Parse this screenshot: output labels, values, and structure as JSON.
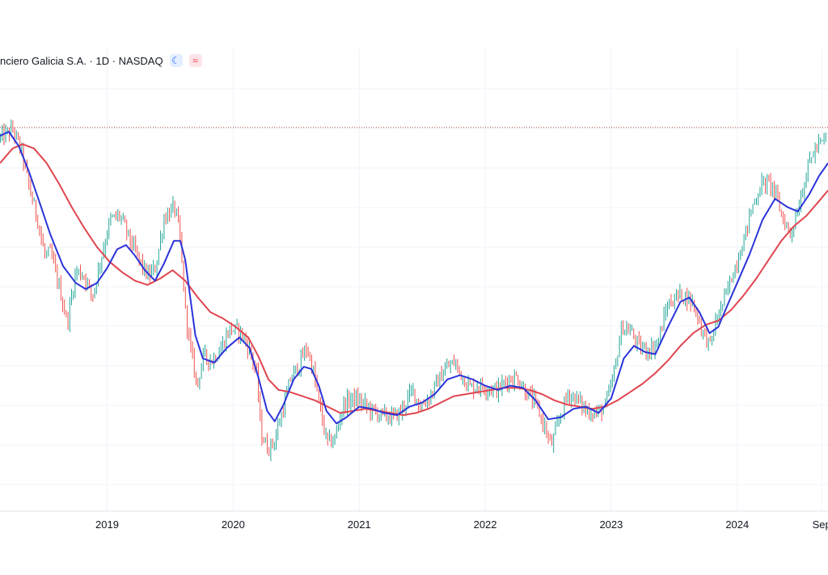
{
  "header": {
    "title": "nciero Galicia S.A. · 1D · NASDAQ",
    "badges": [
      {
        "name": "moon-icon",
        "glyph": "☾",
        "color": "#2962ff"
      },
      {
        "name": "wave-icon",
        "glyph": "≈",
        "color": "#f23645"
      }
    ]
  },
  "colors": {
    "up": "#26a69a",
    "down": "#ef5350",
    "ma_fast": "#2b34d9",
    "ma_slow": "#e0454f",
    "grid": "#f0f3fa",
    "price_line": "#b0504a"
  },
  "chart_data": {
    "type": "line",
    "title": "",
    "xlabel": "",
    "ylabel": "",
    "x_tick_labels": [
      "2019",
      "2020",
      "2021",
      "2022",
      "2023",
      "2024",
      "Sep"
    ],
    "x_tick_positions": [
      2019.0,
      2020.0,
      2021.0,
      2022.0,
      2023.0,
      2024.0,
      2024.67
    ],
    "xlim": [
      2018.15,
      2024.72
    ],
    "ylim": [
      0,
      100
    ],
    "grid": true,
    "price_line_level": 88.5,
    "series": [
      {
        "role": "price",
        "points": [
          [
            2018.15,
            86.0
          ],
          [
            2018.25,
            88.0
          ],
          [
            2018.32,
            82.5
          ],
          [
            2018.38,
            74.0
          ],
          [
            2018.45,
            66.0
          ],
          [
            2018.5,
            58.0
          ],
          [
            2018.55,
            58.5
          ],
          [
            2018.62,
            50.0
          ],
          [
            2018.68,
            42.0
          ],
          [
            2018.75,
            54.5
          ],
          [
            2018.82,
            53.0
          ],
          [
            2018.88,
            48.0
          ],
          [
            2018.93,
            55.0
          ],
          [
            2019.02,
            66.5
          ],
          [
            2019.1,
            67.5
          ],
          [
            2019.18,
            61.5
          ],
          [
            2019.25,
            57.0
          ],
          [
            2019.32,
            53.0
          ],
          [
            2019.38,
            55.0
          ],
          [
            2019.45,
            67.0
          ],
          [
            2019.53,
            69.5
          ],
          [
            2019.57,
            64.0
          ],
          [
            2019.62,
            44.0
          ],
          [
            2019.66,
            35.5
          ],
          [
            2019.71,
            27.0
          ],
          [
            2019.76,
            34.0
          ],
          [
            2019.83,
            33.0
          ],
          [
            2019.9,
            36.0
          ],
          [
            2019.97,
            40.5
          ],
          [
            2020.05,
            40.0
          ],
          [
            2020.12,
            36.0
          ],
          [
            2020.18,
            30.5
          ],
          [
            2020.22,
            15.5
          ],
          [
            2020.27,
            12.0
          ],
          [
            2020.32,
            13.5
          ],
          [
            2020.38,
            20.0
          ],
          [
            2020.45,
            28.5
          ],
          [
            2020.52,
            32.0
          ],
          [
            2020.58,
            36.0
          ],
          [
            2020.63,
            31.0
          ],
          [
            2020.68,
            22.5
          ],
          [
            2020.74,
            13.5
          ],
          [
            2020.8,
            14.0
          ],
          [
            2020.87,
            22.5
          ],
          [
            2020.95,
            24.0
          ],
          [
            2021.02,
            23.0
          ],
          [
            2021.1,
            21.0
          ],
          [
            2021.18,
            20.0
          ],
          [
            2021.25,
            19.5
          ],
          [
            2021.32,
            20.5
          ],
          [
            2021.42,
            26.0
          ],
          [
            2021.48,
            22.0
          ],
          [
            2021.55,
            24.0
          ],
          [
            2021.62,
            28.0
          ],
          [
            2021.68,
            31.0
          ],
          [
            2021.75,
            32.5
          ],
          [
            2021.82,
            29.0
          ],
          [
            2021.88,
            26.5
          ],
          [
            2021.95,
            27.0
          ],
          [
            2022.02,
            26.5
          ],
          [
            2022.1,
            26.0
          ],
          [
            2022.17,
            28.5
          ],
          [
            2022.25,
            29.0
          ],
          [
            2022.32,
            25.5
          ],
          [
            2022.4,
            22.5
          ],
          [
            2022.47,
            17.0
          ],
          [
            2022.52,
            12.5
          ],
          [
            2022.58,
            18.5
          ],
          [
            2022.65,
            25.0
          ],
          [
            2022.72,
            24.0
          ],
          [
            2022.8,
            21.0
          ],
          [
            2022.88,
            20.5
          ],
          [
            2022.95,
            22.0
          ],
          [
            2023.02,
            30.0
          ],
          [
            2023.08,
            41.0
          ],
          [
            2023.15,
            40.0
          ],
          [
            2023.22,
            36.0
          ],
          [
            2023.3,
            35.5
          ],
          [
            2023.37,
            37.5
          ],
          [
            2023.44,
            46.0
          ],
          [
            2023.52,
            48.5
          ],
          [
            2023.58,
            48.5
          ],
          [
            2023.65,
            46.5
          ],
          [
            2023.72,
            40.0
          ],
          [
            2023.78,
            36.5
          ],
          [
            2023.84,
            43.5
          ],
          [
            2023.9,
            48.0
          ],
          [
            2023.97,
            54.5
          ],
          [
            2024.05,
            62.0
          ],
          [
            2024.12,
            70.0
          ],
          [
            2024.2,
            75.5
          ],
          [
            2024.28,
            74.5
          ],
          [
            2024.35,
            67.5
          ],
          [
            2024.42,
            63.0
          ],
          [
            2024.5,
            72.0
          ],
          [
            2024.57,
            80.5
          ],
          [
            2024.63,
            84.0
          ],
          [
            2024.72,
            86.0
          ]
        ]
      },
      {
        "role": "ma_fast",
        "points": [
          [
            2018.15,
            86.5
          ],
          [
            2018.22,
            87.5
          ],
          [
            2018.3,
            84.0
          ],
          [
            2018.38,
            78.0
          ],
          [
            2018.46,
            71.0
          ],
          [
            2018.55,
            63.0
          ],
          [
            2018.65,
            55.5
          ],
          [
            2018.75,
            51.5
          ],
          [
            2018.83,
            50.0
          ],
          [
            2018.92,
            51.5
          ],
          [
            2019.0,
            55.0
          ],
          [
            2019.08,
            59.5
          ],
          [
            2019.15,
            60.5
          ],
          [
            2019.22,
            58.0
          ],
          [
            2019.3,
            54.5
          ],
          [
            2019.38,
            52.0
          ],
          [
            2019.45,
            56.0
          ],
          [
            2019.53,
            61.5
          ],
          [
            2019.58,
            61.5
          ],
          [
            2019.62,
            57.0
          ],
          [
            2019.66,
            48.0
          ],
          [
            2019.7,
            39.0
          ],
          [
            2019.76,
            33.5
          ],
          [
            2019.85,
            32.5
          ],
          [
            2019.95,
            36.0
          ],
          [
            2020.05,
            38.5
          ],
          [
            2020.13,
            36.0
          ],
          [
            2020.2,
            29.0
          ],
          [
            2020.27,
            21.0
          ],
          [
            2020.33,
            18.5
          ],
          [
            2020.4,
            22.5
          ],
          [
            2020.48,
            28.5
          ],
          [
            2020.56,
            31.5
          ],
          [
            2020.62,
            31.0
          ],
          [
            2020.68,
            27.0
          ],
          [
            2020.74,
            21.0
          ],
          [
            2020.82,
            18.0
          ],
          [
            2020.9,
            19.5
          ],
          [
            2021.0,
            22.0
          ],
          [
            2021.1,
            21.5
          ],
          [
            2021.2,
            20.5
          ],
          [
            2021.3,
            20.0
          ],
          [
            2021.4,
            22.0
          ],
          [
            2021.5,
            23.0
          ],
          [
            2021.6,
            25.0
          ],
          [
            2021.7,
            28.5
          ],
          [
            2021.8,
            29.5
          ],
          [
            2021.9,
            28.5
          ],
          [
            2022.0,
            27.0
          ],
          [
            2022.1,
            26.0
          ],
          [
            2022.2,
            27.0
          ],
          [
            2022.3,
            26.5
          ],
          [
            2022.4,
            23.5
          ],
          [
            2022.5,
            19.0
          ],
          [
            2022.6,
            19.5
          ],
          [
            2022.7,
            21.5
          ],
          [
            2022.8,
            22.0
          ],
          [
            2022.9,
            20.5
          ],
          [
            2023.0,
            24.0
          ],
          [
            2023.1,
            33.5
          ],
          [
            2023.18,
            36.5
          ],
          [
            2023.27,
            35.0
          ],
          [
            2023.35,
            34.5
          ],
          [
            2023.45,
            41.0
          ],
          [
            2023.55,
            47.0
          ],
          [
            2023.62,
            48.0
          ],
          [
            2023.7,
            44.5
          ],
          [
            2023.78,
            39.5
          ],
          [
            2023.85,
            41.0
          ],
          [
            2023.92,
            46.0
          ],
          [
            2024.0,
            51.5
          ],
          [
            2024.1,
            58.5
          ],
          [
            2024.2,
            66.5
          ],
          [
            2024.3,
            71.5
          ],
          [
            2024.4,
            69.5
          ],
          [
            2024.48,
            68.5
          ],
          [
            2024.57,
            72.5
          ],
          [
            2024.65,
            77.0
          ],
          [
            2024.72,
            80.0
          ]
        ]
      },
      {
        "role": "ma_slow",
        "points": [
          [
            2018.15,
            80.0
          ],
          [
            2018.25,
            83.5
          ],
          [
            2018.33,
            84.5
          ],
          [
            2018.42,
            83.5
          ],
          [
            2018.52,
            80.0
          ],
          [
            2018.62,
            75.0
          ],
          [
            2018.72,
            69.5
          ],
          [
            2018.82,
            64.5
          ],
          [
            2018.92,
            60.0
          ],
          [
            2019.02,
            56.5
          ],
          [
            2019.12,
            54.0
          ],
          [
            2019.22,
            52.0
          ],
          [
            2019.32,
            51.0
          ],
          [
            2019.42,
            52.5
          ],
          [
            2019.52,
            54.5
          ],
          [
            2019.62,
            52.0
          ],
          [
            2019.72,
            48.0
          ],
          [
            2019.82,
            44.5
          ],
          [
            2019.92,
            43.0
          ],
          [
            2020.02,
            41.0
          ],
          [
            2020.12,
            38.5
          ],
          [
            2020.2,
            34.0
          ],
          [
            2020.28,
            28.5
          ],
          [
            2020.36,
            26.0
          ],
          [
            2020.45,
            25.5
          ],
          [
            2020.55,
            24.5
          ],
          [
            2020.65,
            23.5
          ],
          [
            2020.75,
            22.0
          ],
          [
            2020.85,
            20.5
          ],
          [
            2020.95,
            21.0
          ],
          [
            2021.05,
            21.5
          ],
          [
            2021.15,
            21.0
          ],
          [
            2021.25,
            20.5
          ],
          [
            2021.35,
            20.0
          ],
          [
            2021.45,
            20.5
          ],
          [
            2021.55,
            21.5
          ],
          [
            2021.65,
            23.0
          ],
          [
            2021.75,
            24.5
          ],
          [
            2021.85,
            25.0
          ],
          [
            2021.95,
            25.5
          ],
          [
            2022.05,
            26.0
          ],
          [
            2022.15,
            26.5
          ],
          [
            2022.25,
            26.5
          ],
          [
            2022.35,
            26.0
          ],
          [
            2022.45,
            25.0
          ],
          [
            2022.55,
            23.5
          ],
          [
            2022.65,
            22.5
          ],
          [
            2022.75,
            22.0
          ],
          [
            2022.85,
            21.5
          ],
          [
            2022.95,
            22.0
          ],
          [
            2023.05,
            23.5
          ],
          [
            2023.15,
            25.5
          ],
          [
            2023.25,
            27.5
          ],
          [
            2023.35,
            30.0
          ],
          [
            2023.45,
            33.0
          ],
          [
            2023.55,
            36.5
          ],
          [
            2023.65,
            39.5
          ],
          [
            2023.75,
            41.5
          ],
          [
            2023.85,
            42.5
          ],
          [
            2023.95,
            45.0
          ],
          [
            2024.05,
            48.5
          ],
          [
            2024.15,
            52.5
          ],
          [
            2024.25,
            57.0
          ],
          [
            2024.35,
            61.5
          ],
          [
            2024.45,
            65.0
          ],
          [
            2024.55,
            67.5
          ],
          [
            2024.65,
            71.0
          ],
          [
            2024.72,
            73.5
          ]
        ]
      }
    ]
  }
}
